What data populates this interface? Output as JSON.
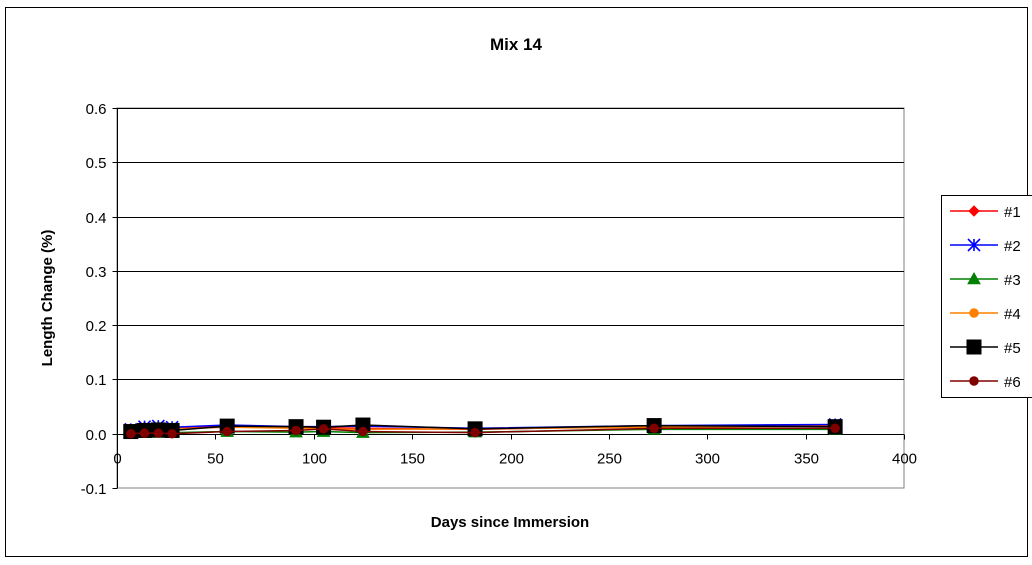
{
  "chart_data": {
    "type": "line",
    "title": "Mix 14",
    "xlabel": "Days since Immersion",
    "ylabel": "Length Change (%)",
    "xlim": [
      0,
      400
    ],
    "ylim": [
      -0.1,
      0.6
    ],
    "x_ticks": [
      0,
      50,
      100,
      150,
      200,
      250,
      300,
      350,
      400
    ],
    "y_ticks": [
      -0.1,
      0.0,
      0.1,
      0.2,
      0.3,
      0.4,
      0.5,
      0.6
    ],
    "x_tick_labels": [
      "0",
      "50",
      "100",
      "150",
      "200",
      "250",
      "300",
      "350",
      "400"
    ],
    "y_tick_labels": [
      "-0.1",
      "0.0",
      "0.1",
      "0.2",
      "0.3",
      "0.4",
      "0.5",
      "0.6"
    ],
    "grid": "horizontal major gridlines",
    "legend_position": "right",
    "x": [
      7,
      14,
      21,
      28,
      56,
      91,
      105,
      125,
      182,
      273,
      365
    ],
    "series": [
      {
        "name": "#1",
        "color": "#ff0000",
        "marker": "diamond",
        "values": [
          0.007,
          0.012,
          0.012,
          0.01,
          0.014,
          0.012,
          0.011,
          0.01,
          0.008,
          0.014,
          0.016
        ]
      },
      {
        "name": "#2",
        "color": "#0000ff",
        "marker": "asterisk",
        "values": [
          0.008,
          0.013,
          0.014,
          0.012,
          0.016,
          0.013,
          0.013,
          0.014,
          0.01,
          0.015,
          0.017
        ]
      },
      {
        "name": "#3",
        "color": "#008000",
        "marker": "triangle",
        "values": [
          0.001,
          0.002,
          0.002,
          0.002,
          0.004,
          0.003,
          0.004,
          0.002,
          0.003,
          0.008,
          0.008
        ]
      },
      {
        "name": "#4",
        "color": "#ff8000",
        "marker": "circle",
        "values": [
          0.006,
          0.01,
          0.01,
          0.009,
          0.012,
          0.01,
          0.009,
          0.008,
          0.009,
          0.012,
          0.014
        ]
      },
      {
        "name": "#5",
        "color": "#000000",
        "marker": "square",
        "values": [
          0.004,
          0.006,
          0.007,
          0.006,
          0.014,
          0.013,
          0.012,
          0.016,
          0.009,
          0.015,
          0.013
        ]
      },
      {
        "name": "#6",
        "color": "#800000",
        "marker": "circle",
        "values": [
          0.0,
          0.001,
          0.001,
          0.0,
          0.004,
          0.006,
          0.009,
          0.004,
          0.002,
          0.01,
          0.01
        ]
      }
    ]
  }
}
